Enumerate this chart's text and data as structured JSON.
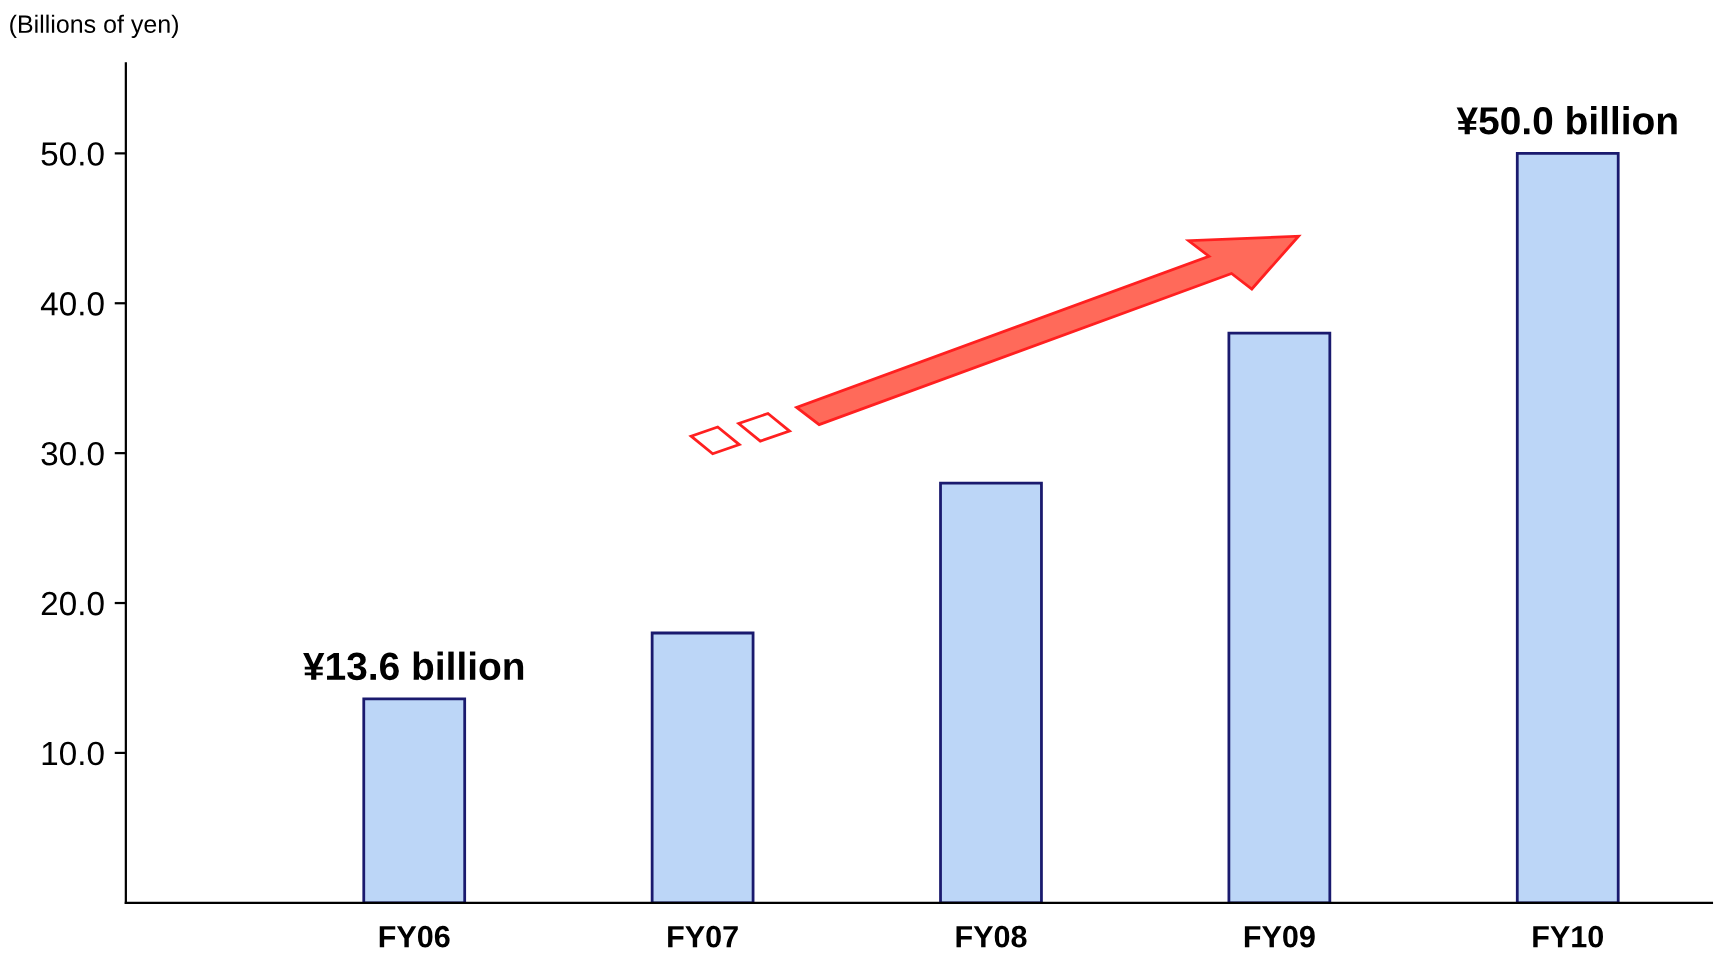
{
  "chart_data": {
    "type": "bar",
    "ylabel": "(Billions of yen)",
    "categories": [
      "FY06",
      "FY07",
      "FY08",
      "FY09",
      "FY10"
    ],
    "values": [
      13.6,
      18,
      28,
      38,
      50.0
    ],
    "value_labels": [
      "¥13.6 billion",
      null,
      null,
      null,
      "¥50.0 billion"
    ],
    "color": "#bcd6f7",
    "ylim": [
      0,
      56
    ],
    "yticks": [
      {
        "value": 10,
        "label": "10.0"
      },
      {
        "value": 20,
        "label": "20.0"
      },
      {
        "value": 30,
        "label": "30.0"
      },
      {
        "value": 40,
        "label": "40.0"
      },
      {
        "value": 50,
        "label": "50.0"
      }
    ],
    "grid": false,
    "legend": false
  }
}
